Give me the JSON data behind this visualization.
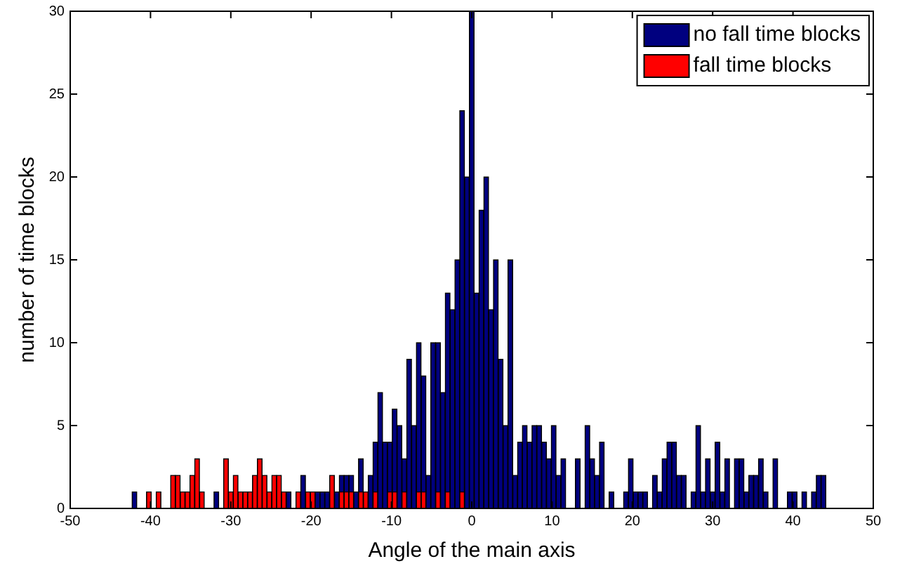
{
  "chart_data": {
    "type": "histogram",
    "xlabel": "Angle of the main axis",
    "ylabel": "number of time blocks",
    "bins": [
      -42.9,
      -42.3,
      -41.7,
      -41.1,
      -40.5,
      -39.9,
      -39.3,
      -38.7,
      -38.1,
      -37.5,
      -36.9,
      -36.3,
      -35.7,
      -35.1,
      -34.5,
      -33.9,
      -33.3,
      -32.7,
      -32.1,
      -31.5,
      -30.9,
      -30.3,
      -29.7,
      -29.1,
      -28.5,
      -27.9,
      -27.3,
      -26.7,
      -26.1,
      -25.5,
      -24.9,
      -24.3,
      -23.7,
      -23.1,
      -22.5,
      -21.9,
      -21.3,
      -20.7,
      -20.1,
      -19.5,
      -18.9,
      -18.3,
      -17.7,
      -17.1,
      -16.5,
      -15.9,
      -15.3,
      -14.7,
      -14.1,
      -13.5,
      -12.9,
      -12.3,
      -11.7,
      -11.1,
      -10.5,
      -9.9,
      -9.3,
      -8.7,
      -8.1,
      -7.5,
      -6.9,
      -6.3,
      -5.7,
      -5.1,
      -4.5,
      -3.9,
      -3.3,
      -2.7,
      -2.1,
      -1.5,
      -0.9,
      -0.3,
      0.3,
      0.9,
      1.5,
      2.1,
      2.7,
      3.3,
      3.9,
      4.5,
      5.1,
      5.7,
      6.3,
      6.9,
      7.5,
      8.1,
      8.7,
      9.3,
      9.9,
      10.5,
      11.1,
      11.7,
      12.3,
      12.9,
      13.5,
      14.1,
      14.7,
      15.3,
      15.9,
      16.5,
      17.1,
      17.7,
      18.3,
      18.9,
      19.5,
      20.1,
      20.7,
      21.3,
      21.9,
      22.5,
      23.1,
      23.7,
      24.3,
      24.9,
      25.5,
      26.1,
      26.7,
      27.3,
      27.9,
      28.5,
      29.1,
      29.7,
      30.3,
      30.9,
      31.5,
      32.1,
      32.7,
      33.3,
      33.9,
      34.5,
      35.1,
      35.7,
      36.3,
      36.9,
      37.5,
      38.1,
      38.7,
      39.3,
      39.9,
      40.5,
      41.1,
      41.7,
      42.3,
      42.9,
      43.5,
      44.1
    ],
    "series": [
      {
        "name": "no fall time blocks",
        "color": "#00007f",
        "values": [
          0,
          1,
          0,
          0,
          0,
          0,
          0,
          0,
          0,
          0,
          0,
          0,
          0,
          0,
          0,
          0,
          0,
          0,
          1,
          0,
          0,
          0,
          0,
          0,
          0,
          0,
          0,
          0,
          0,
          0,
          0,
          0,
          0,
          1,
          0,
          0,
          2,
          0,
          0,
          1,
          1,
          1,
          0,
          1,
          2,
          2,
          2,
          1,
          3,
          0,
          2,
          4,
          7,
          4,
          4,
          6,
          5,
          3,
          9,
          5,
          10,
          8,
          2,
          10,
          10,
          7,
          13,
          12,
          15,
          24,
          20,
          30,
          13,
          18,
          20,
          12,
          15,
          9,
          5,
          15,
          2,
          4,
          5,
          4,
          5,
          5,
          4,
          3,
          5,
          2,
          3,
          0,
          0,
          3,
          0,
          5,
          3,
          2,
          4,
          0,
          1,
          0,
          0,
          1,
          3,
          1,
          1,
          1,
          0,
          2,
          1,
          3,
          4,
          4,
          2,
          2,
          0,
          1,
          5,
          1,
          3,
          1,
          4,
          1,
          3,
          0,
          3,
          3,
          1,
          2,
          2,
          3,
          1,
          0,
          3,
          0,
          0,
          1,
          1,
          0,
          1,
          0,
          1,
          2,
          2
        ]
      },
      {
        "name": "fall time blocks",
        "color": "#ff0000",
        "values": [
          0,
          0,
          0,
          0,
          1,
          0,
          1,
          0,
          0,
          2,
          2,
          1,
          1,
          2,
          3,
          1,
          0,
          0,
          0,
          0,
          3,
          1,
          2,
          1,
          1,
          1,
          2,
          3,
          2,
          1,
          2,
          2,
          1,
          0,
          0,
          1,
          0,
          1,
          1,
          0,
          0,
          0,
          2,
          0,
          1,
          1,
          1,
          0,
          1,
          1,
          0,
          1,
          0,
          0,
          1,
          1,
          0,
          1,
          0,
          0,
          1,
          1,
          0,
          0,
          1,
          0,
          1,
          0,
          0,
          1,
          0,
          0,
          0,
          0,
          0,
          0,
          0,
          0,
          0,
          0,
          0,
          0,
          0,
          0,
          0,
          0,
          0,
          0,
          0,
          0,
          0,
          0,
          0,
          0,
          0,
          0,
          0,
          0,
          0,
          0,
          0,
          0,
          0,
          0,
          0,
          0,
          0,
          0,
          0,
          0,
          0,
          0,
          0,
          0,
          0,
          0,
          0,
          0,
          0,
          0,
          0,
          0,
          0,
          0,
          0,
          0,
          0,
          0,
          0,
          0,
          0,
          0,
          0,
          0,
          0,
          0,
          0,
          0,
          0,
          0,
          0,
          0,
          0,
          0,
          0
        ]
      }
    ],
    "xlim": [
      -50,
      50
    ],
    "xticks": [
      -50,
      -40,
      -30,
      -20,
      -10,
      0,
      10,
      20,
      30,
      40,
      50
    ],
    "ylim": [
      0,
      30
    ],
    "yticks": [
      0,
      5,
      10,
      15,
      20,
      25,
      30
    ],
    "legend": "top right"
  }
}
